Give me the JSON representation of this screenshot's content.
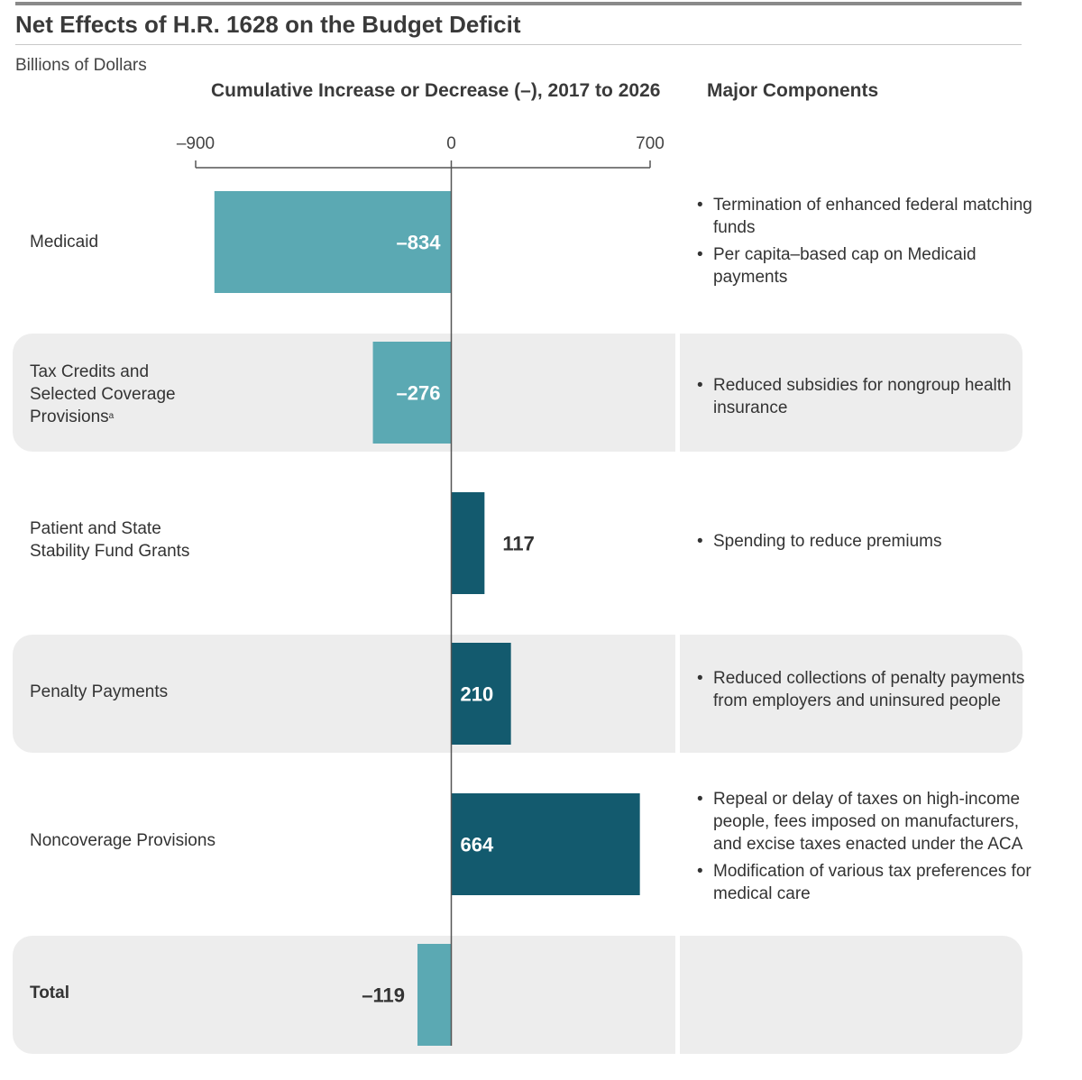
{
  "title": "Net Effects of H.R. 1628 on the Budget Deficit",
  "units": "Billions of Dollars",
  "headers": {
    "chart": "Cumulative Increase or Decrease (–), 2017 to 2026",
    "components": "Major Components"
  },
  "colors": {
    "negative": "#5ba9b3",
    "positive": "#135a6e",
    "band": "#ededed",
    "axis": "#555555"
  },
  "rows": [
    {
      "label_lines": [
        "Medicaid"
      ],
      "bullets": [
        "Termination of enhanced federal matching funds",
        "Per capita–based cap on Medicaid payments"
      ]
    },
    {
      "label_lines": [
        "Tax Credits and",
        "Selected Coverage",
        "Provisions"
      ],
      "footnote": "a",
      "bullets": [
        "Reduced subsidies for nongroup health insurance"
      ]
    },
    {
      "label_lines": [
        "Patient and State",
        "Stability Fund Grants"
      ],
      "bullets": [
        "Spending to reduce premiums"
      ]
    },
    {
      "label_lines": [
        "Penalty Payments"
      ],
      "bullets": [
        "Reduced collections of penalty payments from employers and uninsured people"
      ]
    },
    {
      "label_lines": [
        "Noncoverage Provisions"
      ],
      "bullets": [
        "Repeal or delay of taxes on high-income people, fees imposed on manufacturers, and excise taxes enacted under the ACA",
        "Modification of various tax preferences for medical care"
      ]
    },
    {
      "label_lines": [
        "Total"
      ],
      "bold": true,
      "bullets": []
    }
  ],
  "chart_data": {
    "type": "bar",
    "orientation": "horizontal",
    "categories": [
      "Medicaid",
      "Tax Credits and Selected Coverage Provisions",
      "Patient and State Stability Fund Grants",
      "Penalty Payments",
      "Noncoverage Provisions",
      "Total"
    ],
    "values": [
      -834,
      -276,
      117,
      210,
      664,
      -119
    ],
    "value_labels": [
      "–834",
      "–276",
      "117",
      "210",
      "664",
      "–119"
    ],
    "xlim": [
      -900,
      700
    ],
    "ticks": [
      -900,
      0,
      700
    ],
    "tick_labels": [
      "–900",
      "0",
      "700"
    ],
    "xlabel": "Cumulative Increase or Decrease (–), 2017 to 2026",
    "ylabel": "",
    "grid": false
  }
}
